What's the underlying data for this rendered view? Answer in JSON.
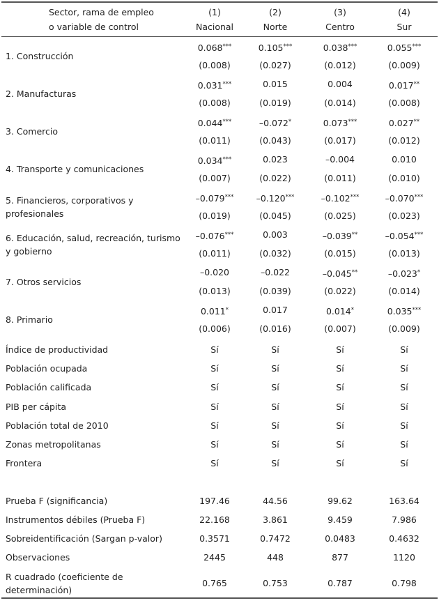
{
  "table": {
    "header": {
      "label": [
        "Sector, rama de empleo",
        "o variable de control"
      ],
      "columns": [
        {
          "num": "(1)",
          "name": "Nacional"
        },
        {
          "num": "(2)",
          "name": "Norte"
        },
        {
          "num": "(3)",
          "name": "Centro"
        },
        {
          "num": "(4)",
          "name": "Sur"
        }
      ]
    },
    "sectors": [
      {
        "label": [
          "1. Construcción"
        ],
        "coef": [
          {
            "v": "0.068",
            "s": "***"
          },
          {
            "v": "0.105",
            "s": "***"
          },
          {
            "v": "0.038",
            "s": "***"
          },
          {
            "v": "0.055",
            "s": "***"
          }
        ],
        "se": [
          "(0.008)",
          "(0.027)",
          "(0.012)",
          "(0.009)"
        ]
      },
      {
        "label": [
          "2. Manufacturas"
        ],
        "coef": [
          {
            "v": "0.031",
            "s": "***"
          },
          {
            "v": "0.015"
          },
          {
            "v": "0.004"
          },
          {
            "v": "0.017",
            "s": "**"
          }
        ],
        "se": [
          "(0.008)",
          "(0.019)",
          "(0.014)",
          "(0.008)"
        ]
      },
      {
        "label": [
          "3. Comercio"
        ],
        "coef": [
          {
            "v": "0.044",
            "s": "***"
          },
          {
            "v": "–0.072",
            "s": "*"
          },
          {
            "v": "0.073",
            "s": "***"
          },
          {
            "v": "0.027",
            "s": "**"
          }
        ],
        "se": [
          "(0.011)",
          "(0.043)",
          "(0.017)",
          "(0.012)"
        ]
      },
      {
        "label": [
          "4. Transporte y comunicaciones"
        ],
        "coef": [
          {
            "v": "0.034",
            "s": "***"
          },
          {
            "v": "0.023"
          },
          {
            "v": "–0.004"
          },
          {
            "v": "0.010"
          }
        ],
        "se": [
          "(0.007)",
          "(0.022)",
          "(0.011)",
          "(0.010)"
        ]
      },
      {
        "label": [
          "5. Financieros, corporativos y",
          "profesionales"
        ],
        "coef": [
          {
            "v": "–0.079",
            "s": "***"
          },
          {
            "v": "–0.120",
            "s": "***"
          },
          {
            "v": "–0.102",
            "s": "***"
          },
          {
            "v": "–0.070",
            "s": "***"
          }
        ],
        "se": [
          "(0.019)",
          "(0.045)",
          "(0.025)",
          "(0.023)"
        ]
      },
      {
        "label": [
          "6. Educación, salud, recreación, turismo",
          "y gobierno"
        ],
        "coef": [
          {
            "v": "–0.076",
            "s": "***"
          },
          {
            "v": "0.003"
          },
          {
            "v": "–0.039",
            "s": "**"
          },
          {
            "v": "–0.054",
            "s": "***"
          }
        ],
        "se": [
          "(0.011)",
          "(0.032)",
          "(0.015)",
          "(0.013)"
        ]
      },
      {
        "label": [
          "7. Otros servicios"
        ],
        "coef": [
          {
            "v": "–0.020"
          },
          {
            "v": "–0.022"
          },
          {
            "v": "–0.045",
            "s": "**"
          },
          {
            "v": "–0.023",
            "s": "*"
          }
        ],
        "se": [
          "(0.013)",
          "(0.039)",
          "(0.022)",
          "(0.014)"
        ]
      },
      {
        "label": [
          "8. Primario"
        ],
        "coef": [
          {
            "v": "0.011",
            "s": "*"
          },
          {
            "v": "0.017"
          },
          {
            "v": "0.014",
            "s": "*"
          },
          {
            "v": "0.035",
            "s": "***"
          }
        ],
        "se": [
          "(0.006)",
          "(0.016)",
          "(0.007)",
          "(0.009)"
        ]
      }
    ],
    "controls": [
      {
        "label": [
          "Índice de productividad"
        ],
        "values": [
          "Sí",
          "Sí",
          "Sí",
          "Sí"
        ]
      },
      {
        "label": [
          "Población ocupada"
        ],
        "values": [
          "Sí",
          "Sí",
          "Sí",
          "Sí"
        ]
      },
      {
        "label": [
          "Población calificada"
        ],
        "values": [
          "Sí",
          "Sí",
          "Sí",
          "Sí"
        ]
      },
      {
        "label": [
          "PIB per cápita"
        ],
        "values": [
          "Sí",
          "Sí",
          "Sí",
          "Sí"
        ]
      },
      {
        "label": [
          "Población total de 2010"
        ],
        "values": [
          "Sí",
          "Sí",
          "Sí",
          "Sí"
        ]
      },
      {
        "label": [
          "Zonas metropolitanas"
        ],
        "values": [
          "Sí",
          "Sí",
          "Sí",
          "Sí"
        ]
      },
      {
        "label": [
          "Frontera"
        ],
        "values": [
          "Sí",
          "Sí",
          "Sí",
          "Sí"
        ]
      }
    ],
    "stats": [
      {
        "label": [
          "Prueba F (significancia)"
        ],
        "values": [
          "197.46",
          "44.56",
          "99.62",
          "163.64"
        ]
      },
      {
        "label": [
          "Instrumentos débiles (Prueba F)"
        ],
        "values": [
          "22.168",
          "3.861",
          "9.459",
          "7.986"
        ]
      },
      {
        "label": [
          "Sobreidentificación (Sargan p-valor)"
        ],
        "values": [
          "0.3571",
          "0.7472",
          "0.0483",
          "0.4632"
        ]
      },
      {
        "label": [
          "Observaciones"
        ],
        "values": [
          "2445",
          "448",
          "877",
          "1120"
        ]
      },
      {
        "label": [
          "R cuadrado (coeficiente de",
          "determinación)"
        ],
        "values": [
          "0.765",
          "0.753",
          "0.787",
          "0.798"
        ]
      }
    ]
  }
}
